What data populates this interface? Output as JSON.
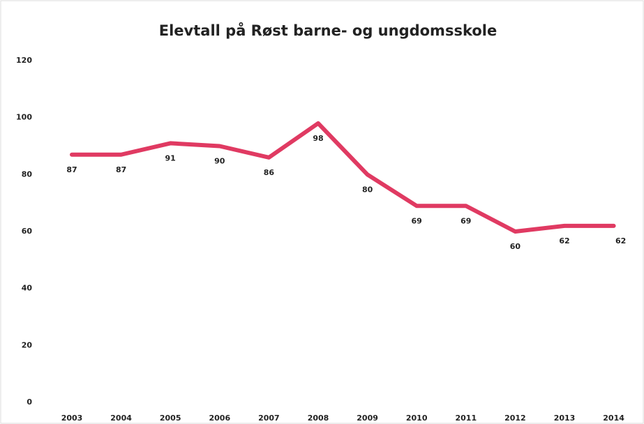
{
  "chart_data": {
    "type": "line",
    "title": "Elevtall på Røst barne- og ungdomsskole",
    "categories": [
      "2003",
      "2004",
      "2005",
      "2006",
      "2007",
      "2008",
      "2009",
      "2010",
      "2011",
      "2012",
      "2013",
      "2014"
    ],
    "series": [
      {
        "name": "Elevtall",
        "color": "#e03a62",
        "values": [
          87,
          87,
          91,
          90,
          86,
          98,
          80,
          69,
          69,
          60,
          62,
          62
        ]
      }
    ],
    "ylim": [
      0,
      120
    ],
    "yticks": [
      0,
      20,
      40,
      60,
      80,
      100,
      120
    ],
    "grid": false
  }
}
